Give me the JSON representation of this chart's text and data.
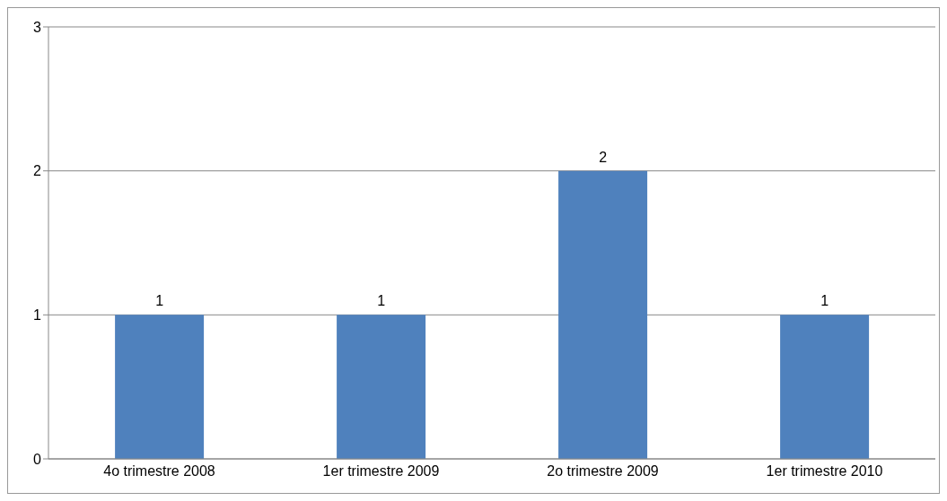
{
  "chart_data": {
    "type": "bar",
    "categories": [
      "4o trimestre 2008",
      "1er trimestre 2009",
      "2o trimestre 2009",
      "1er trimestre 2010"
    ],
    "values": [
      1,
      1,
      2,
      1
    ],
    "color": "#4f81bd",
    "ylim": [
      0,
      3
    ],
    "yticks": [
      0,
      1,
      2,
      3
    ],
    "grid": "y",
    "data_labels": true
  }
}
